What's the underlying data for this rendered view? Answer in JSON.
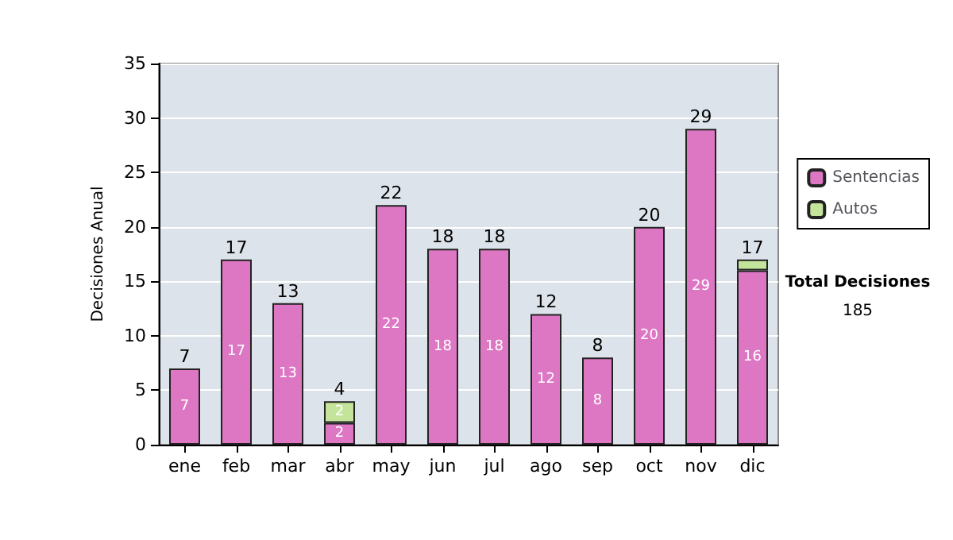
{
  "chart_data": {
    "type": "bar",
    "stacked": true,
    "ylabel": "Decisiones Anual",
    "categories": [
      "ene",
      "feb",
      "mar",
      "abr",
      "may",
      "jun",
      "jul",
      "ago",
      "sep",
      "oct",
      "nov",
      "dic"
    ],
    "series": [
      {
        "name": "Sentencias",
        "color": "#dd77c4",
        "values": [
          7,
          17,
          13,
          2,
          22,
          18,
          18,
          12,
          8,
          20,
          29,
          16
        ],
        "value_labels": [
          "7",
          "17",
          "13",
          "2",
          "22",
          "18",
          "18",
          "12",
          "8",
          "20",
          "29",
          "16"
        ]
      },
      {
        "name": "Autos",
        "color": "#c4e49c",
        "values": [
          0,
          0,
          0,
          2,
          0,
          0,
          0,
          0,
          0,
          0,
          0,
          1
        ],
        "value_labels": [
          null,
          null,
          null,
          "2",
          null,
          null,
          null,
          null,
          null,
          null,
          null,
          null
        ]
      }
    ],
    "totals": [
      "7",
      "17",
      "13",
      "4",
      "22",
      "18",
      "18",
      "12",
      "8",
      "20",
      "29",
      "17"
    ],
    "ylim": [
      0,
      35
    ],
    "yticks": [
      0,
      5,
      10,
      15,
      20,
      25,
      30,
      35
    ],
    "grid": "y",
    "legend": "right",
    "annotations": [
      "Total Decisiones",
      "185"
    ]
  }
}
